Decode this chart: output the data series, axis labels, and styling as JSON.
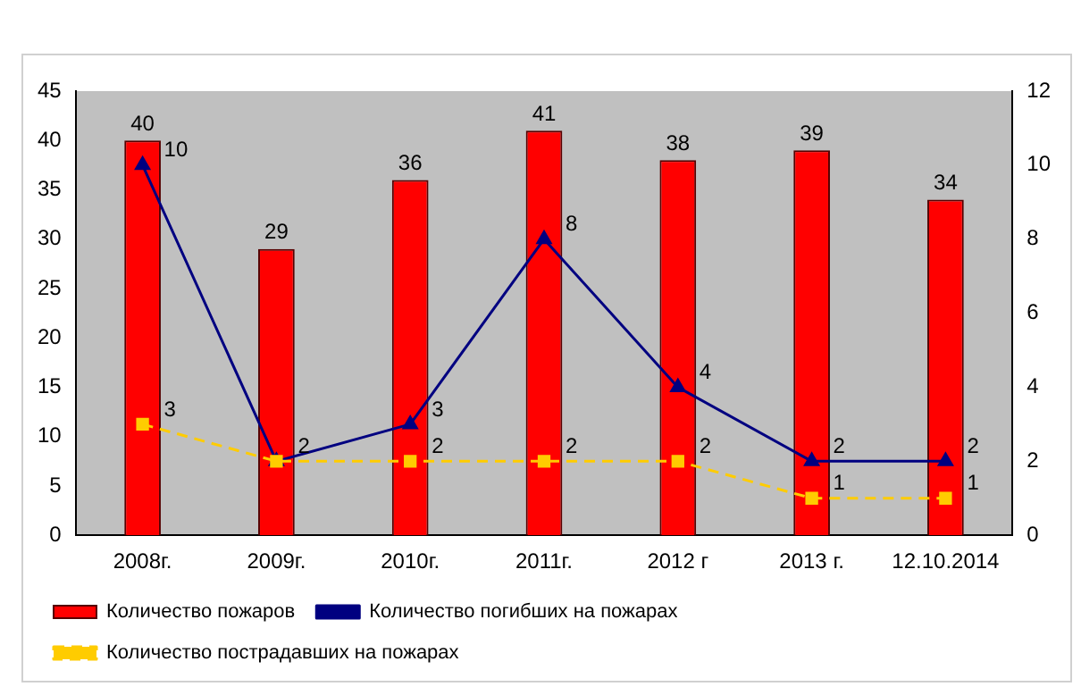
{
  "chart_data": {
    "type": "bar",
    "categories": [
      "2008г.",
      "2009г.",
      "2010г.",
      "2011г.",
      "2012 г",
      "2013 г.",
      "12.10.2014"
    ],
    "series": [
      {
        "name": "Количество пожаров",
        "color": "#ff0000",
        "values": [
          40,
          29,
          36,
          41,
          38,
          39,
          34
        ],
        "value_labels": [
          "40",
          "29",
          "36",
          "41",
          "38",
          "39",
          "34"
        ]
      },
      {
        "name": "Количество погибших на пожарах",
        "type": "line",
        "axis": "y2",
        "color": "#000080",
        "marker": "triangle",
        "line_style": "solid",
        "values": [
          10,
          2,
          3,
          8,
          4,
          2,
          2
        ],
        "value_labels": [
          "10",
          "2",
          "3",
          "8",
          "4",
          "2",
          "2"
        ]
      },
      {
        "name": "Количество пострадавших на пожарах",
        "type": "line",
        "axis": "y2",
        "color": "#ffcc00",
        "marker": "square",
        "line_style": "dashed",
        "values": [
          3,
          2,
          2,
          2,
          2,
          1,
          1
        ],
        "value_labels": [
          "3",
          null,
          "2",
          "2",
          "2",
          "1",
          "1"
        ]
      }
    ],
    "ylim": [
      0,
      45
    ],
    "yticks": [
      0,
      5,
      10,
      15,
      20,
      25,
      30,
      35,
      40,
      45
    ],
    "y2lim": [
      0,
      12
    ],
    "y2ticks": [
      0,
      2,
      4,
      6,
      8,
      10,
      12
    ],
    "grid": false,
    "legend": "bottom"
  }
}
